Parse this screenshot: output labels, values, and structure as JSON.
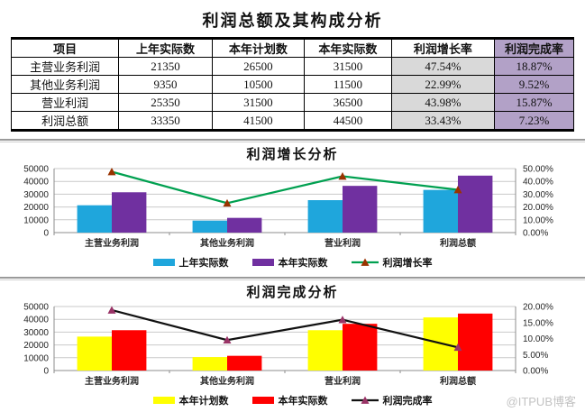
{
  "page": {
    "title": "利润总额及其构成分析",
    "watermark": "@ITPUB博客"
  },
  "table": {
    "headers": [
      "项目",
      "上年实际数",
      "本年计划数",
      "本年实际数",
      "利润增长率",
      "利润完成率"
    ],
    "rows": [
      [
        "主营业务利润",
        "21350",
        "26500",
        "31500",
        "47.54%",
        "18.87%"
      ],
      [
        "其他业务利润",
        "9350",
        "10500",
        "11500",
        "22.99%",
        "9.52%"
      ],
      [
        "营业利润",
        "25350",
        "31500",
        "36500",
        "43.98%",
        "15.87%"
      ],
      [
        "利润总额",
        "33350",
        "41500",
        "44500",
        "33.43%",
        "7.23%"
      ]
    ],
    "highlight_colors": {
      "growth_col": "#d9d9d9",
      "completion_col": "#b2a1c7"
    }
  },
  "chart_data": [
    {
      "type": "bar+line",
      "title": "利润增长分析",
      "categories": [
        "主营业务利润",
        "其他业务利润",
        "营业利润",
        "利润总额"
      ],
      "bar_series": [
        {
          "name": "上年实际数",
          "color": "#1fa6dc",
          "values": [
            21350,
            9350,
            25350,
            33350
          ]
        },
        {
          "name": "本年实际数",
          "color": "#7030a0",
          "values": [
            31500,
            11500,
            36500,
            44500
          ]
        }
      ],
      "line_series": {
        "name": "利润增长率",
        "color": "#00a050",
        "marker_color": "#993300",
        "values_pct": [
          47.54,
          22.99,
          43.98,
          33.43
        ]
      },
      "left_axis": {
        "min": 0,
        "max": 50000,
        "step": 10000
      },
      "right_axis": {
        "min": 0,
        "max": 50,
        "step": 10,
        "suffix": "%"
      },
      "grid": true,
      "legend_position": "bottom"
    },
    {
      "type": "bar+line",
      "title": "利润完成分析",
      "categories": [
        "主营业务利润",
        "其他业务利润",
        "营业利润",
        "利润总额"
      ],
      "bar_series": [
        {
          "name": "本年计划数",
          "color": "#ffff00",
          "values": [
            26500,
            10500,
            31500,
            41500
          ]
        },
        {
          "name": "本年实际数",
          "color": "#ff0000",
          "values": [
            31500,
            11500,
            36500,
            44500
          ]
        }
      ],
      "line_series": {
        "name": "利润完成率",
        "color": "#111111",
        "marker_color": "#993366",
        "values_pct": [
          18.87,
          9.52,
          15.87,
          7.23
        ]
      },
      "left_axis": {
        "min": 0,
        "max": 50000,
        "step": 10000
      },
      "right_axis": {
        "min": 0,
        "max": 20,
        "step": 5,
        "suffix": "%"
      },
      "grid": true,
      "legend_position": "bottom"
    }
  ]
}
